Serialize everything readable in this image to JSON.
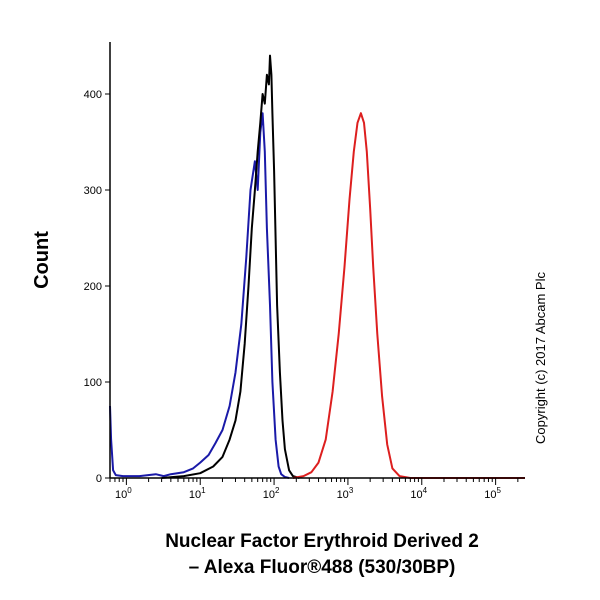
{
  "chart_data": {
    "type": "line",
    "xscale": "log",
    "xlim": [
      0.6,
      250000
    ],
    "ylim": [
      0,
      450
    ],
    "ylabel": "Count",
    "xlabel_lines": [
      "Nuclear Factor Erythroid Derived 2",
      "– Alexa Fluor®488 (530/30BP)"
    ],
    "y_ticks": [
      0,
      100,
      200,
      300,
      400
    ],
    "x_ticks": [
      {
        "base": "10",
        "exp": "0"
      },
      {
        "base": "10",
        "exp": "1"
      },
      {
        "base": "10",
        "exp": "2"
      },
      {
        "base": "10",
        "exp": "3"
      },
      {
        "base": "10",
        "exp": "4"
      },
      {
        "base": "10",
        "exp": "5"
      }
    ],
    "copyright": "Copyright (c) 2017 Abcam Plc",
    "grid": false,
    "series": [
      {
        "color": "#1a1aa8",
        "x": [
          0.6,
          0.62,
          0.66,
          0.72,
          0.9,
          1.5,
          2.5,
          3.2,
          4.0,
          6.0,
          8.0,
          10,
          13,
          16,
          20,
          25,
          30,
          36,
          42,
          48,
          55,
          60,
          65,
          70,
          75,
          80,
          88,
          95,
          105,
          115,
          125,
          140,
          160
        ],
        "y": [
          75,
          40,
          8,
          3,
          2,
          2,
          4,
          2,
          4,
          6,
          10,
          16,
          24,
          36,
          50,
          75,
          110,
          160,
          230,
          300,
          330,
          300,
          360,
          380,
          340,
          260,
          180,
          100,
          40,
          12,
          4,
          1,
          0
        ]
      },
      {
        "color": "#000000",
        "x": [
          3,
          6,
          10,
          15,
          20,
          25,
          30,
          35,
          40,
          45,
          50,
          55,
          60,
          65,
          70,
          75,
          80,
          85,
          88,
          92,
          95,
          100,
          105,
          110,
          120,
          130,
          140,
          160,
          180,
          220
        ],
        "y": [
          0,
          2,
          5,
          12,
          22,
          40,
          60,
          90,
          140,
          200,
          260,
          300,
          340,
          370,
          400,
          390,
          420,
          410,
          440,
          420,
          380,
          320,
          250,
          180,
          110,
          60,
          30,
          8,
          2,
          0
        ]
      },
      {
        "color": "#dd1f1f",
        "x": [
          180,
          250,
          320,
          400,
          500,
          620,
          750,
          900,
          1050,
          1200,
          1350,
          1500,
          1650,
          1800,
          2000,
          2200,
          2500,
          2900,
          3400,
          4000,
          5000,
          7000,
          250000
        ],
        "y": [
          0,
          2,
          6,
          16,
          40,
          90,
          150,
          220,
          290,
          340,
          370,
          380,
          370,
          340,
          280,
          220,
          150,
          85,
          35,
          10,
          2,
          0,
          0
        ]
      }
    ]
  }
}
